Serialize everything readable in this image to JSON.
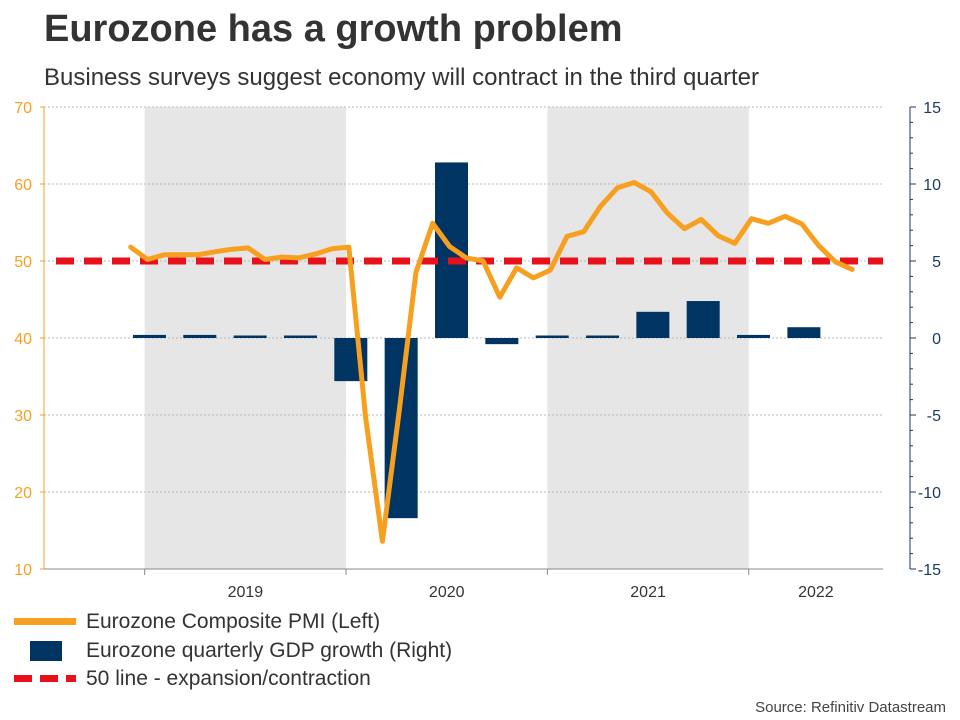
{
  "header": {
    "title": "Eurozone has a growth problem",
    "subtitle": "Business surveys suggest economy will contract in the third quarter"
  },
  "source": "Source: Refinitiv Datastream",
  "colors": {
    "pmi": "#f7a020",
    "gdp": "#003462",
    "fifty_line": "#e8101a",
    "shade": "#e6e6e6",
    "left_axis": "#f7a020",
    "right_axis": "#1b3a5c"
  },
  "chart_data": {
    "type": "bar+line",
    "title": "Eurozone has a growth problem",
    "subtitle": "Business surveys suggest economy will contract in the third quarter",
    "x_range": [
      "2018-07",
      "2022-09"
    ],
    "shaded_years": [
      "2019",
      "2021"
    ],
    "x_ticks": [
      "2019",
      "2020",
      "2021",
      "2022"
    ],
    "left_axis": {
      "ylim": [
        10,
        70
      ],
      "ticks": [
        "70",
        "60",
        "50",
        "40",
        "30",
        "20",
        "10"
      ]
    },
    "right_axis": {
      "ylim": [
        -15,
        15
      ],
      "ticks": [
        "15",
        "10",
        "5",
        "0",
        "-5",
        "-10",
        "-15"
      ]
    },
    "grid": true,
    "legend_position": "bottom-left",
    "series": [
      {
        "name": "Eurozone Composite PMI (Left)",
        "type": "line",
        "axis": "left",
        "x": [
          "2019-01",
          "2019-02",
          "2019-03",
          "2019-04",
          "2019-05",
          "2019-06",
          "2019-07",
          "2019-08",
          "2019-09",
          "2019-10",
          "2019-11",
          "2019-12",
          "2020-01",
          "2020-02",
          "2020-03",
          "2020-04",
          "2020-05",
          "2020-06",
          "2020-07",
          "2020-08",
          "2020-09",
          "2020-10",
          "2020-11",
          "2020-12",
          "2021-01",
          "2021-02",
          "2021-03",
          "2021-04",
          "2021-05",
          "2021-06",
          "2021-07",
          "2021-08",
          "2021-09",
          "2021-10",
          "2021-11",
          "2021-12",
          "2022-01",
          "2022-02",
          "2022-03",
          "2022-04",
          "2022-05",
          "2022-06",
          "2022-07",
          "2022-08"
        ],
        "values": [
          51.8,
          50.2,
          50.8,
          50.8,
          50.8,
          51.2,
          51.5,
          51.7,
          50.2,
          50.5,
          50.4,
          50.9,
          51.6,
          51.8,
          29.7,
          13.6,
          30.5,
          48.5,
          54.9,
          51.9,
          50.4,
          50.0,
          45.3,
          49.1,
          47.8,
          48.8,
          53.2,
          53.8,
          57.1,
          59.5,
          60.2,
          59.0,
          56.2,
          54.2,
          55.4,
          53.3,
          52.3,
          55.5,
          54.9,
          55.8,
          54.8,
          52.0,
          49.9,
          48.9
        ]
      },
      {
        "name": "Eurozone quarterly GDP growth (Right)",
        "type": "bar",
        "axis": "right",
        "x": [
          "2019-Q1",
          "2019-Q2",
          "2019-Q3",
          "2019-Q4",
          "2020-Q1",
          "2020-Q2",
          "2020-Q3",
          "2020-Q4",
          "2021-Q1",
          "2021-Q2",
          "2021-Q3",
          "2021-Q4",
          "2022-Q1",
          "2022-Q2"
        ],
        "values": [
          0.2,
          0.2,
          0.0,
          0.0,
          -2.8,
          -11.7,
          11.4,
          -0.4,
          0.0,
          0.0,
          1.7,
          2.4,
          0.2,
          0.7
        ]
      },
      {
        "name": "50 line - expansion/contraction",
        "type": "line",
        "style": "dashed",
        "axis": "left",
        "values": [
          50,
          50
        ]
      }
    ]
  }
}
